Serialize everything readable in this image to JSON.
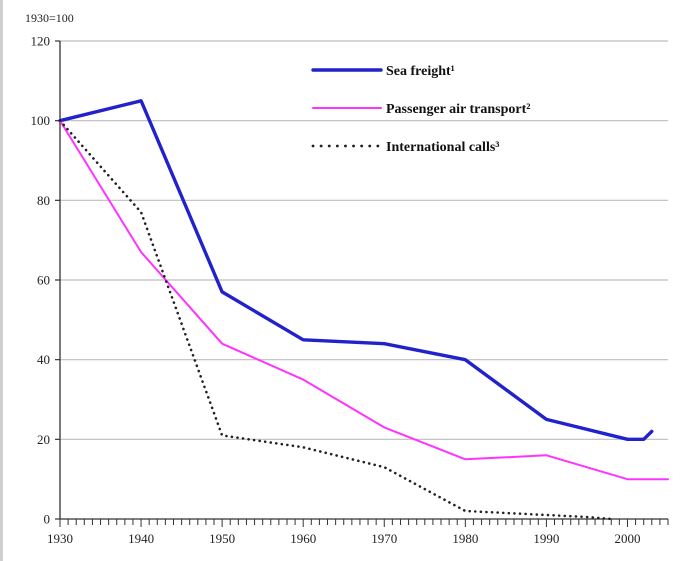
{
  "chart_data": {
    "type": "line",
    "unit_label": "1930=100",
    "title": "",
    "xlabel": "",
    "ylabel": "",
    "xlim": [
      1930,
      2005
    ],
    "ylim": [
      0,
      120
    ],
    "y_ticks": [
      0,
      20,
      40,
      60,
      80,
      100,
      120
    ],
    "x_tick_labels": [
      1930,
      1940,
      1950,
      1960,
      1970,
      1980,
      1990,
      2000
    ],
    "grid": "horizontal",
    "legend_position": "top-right",
    "series": [
      {
        "name": "Sea freight¹",
        "color": "#2222cc",
        "style": "solid",
        "x": [
          1930,
          1940,
          1950,
          1960,
          1970,
          1980,
          1990,
          2000,
          2002,
          2003
        ],
        "y": [
          100,
          105,
          57,
          45,
          44,
          40,
          25,
          20,
          20,
          22
        ]
      },
      {
        "name": "Passenger air transport²",
        "color": "#ff33ff",
        "style": "solid",
        "x": [
          1930,
          1940,
          1950,
          1960,
          1970,
          1980,
          1990,
          2000,
          2005
        ],
        "y": [
          100,
          67,
          44,
          35,
          23,
          15,
          16,
          10,
          10
        ]
      },
      {
        "name": "International calls³",
        "color": "#222222",
        "style": "dotted",
        "x": [
          1930,
          1940,
          1950,
          1960,
          1970,
          1980,
          1990,
          1995,
          1998
        ],
        "y": [
          100,
          77,
          21,
          18,
          13,
          2,
          1,
          0.5,
          0
        ]
      }
    ]
  }
}
